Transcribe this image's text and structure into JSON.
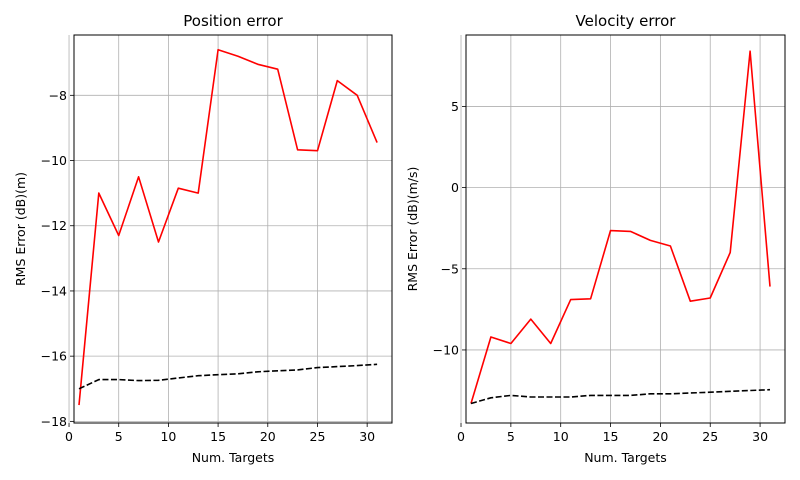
{
  "chart_data": [
    {
      "type": "line",
      "title": "Position error",
      "xlabel": "Num. Targets",
      "ylabel": "RMS Error (dB)(m)",
      "xlim": [
        0.5,
        32.5
      ],
      "ylim": [
        -18.05,
        -6.15
      ],
      "xticks": [
        0,
        5,
        10,
        15,
        20,
        25,
        30
      ],
      "yticks": [
        -18,
        -16,
        -14,
        -12,
        -10,
        -8
      ],
      "ytick_labels": [
        "−18",
        "−16",
        "−14",
        "−12",
        "−10",
        "−8"
      ],
      "grid": true,
      "x": [
        1,
        3,
        5,
        7,
        9,
        11,
        13,
        15,
        17,
        19,
        21,
        23,
        25,
        27,
        29,
        31
      ],
      "series": [
        {
          "color": "#ff0000",
          "style": "solid",
          "values": [
            -17.5,
            -11.0,
            -12.3,
            -10.5,
            -12.5,
            -10.85,
            -11.0,
            -6.6,
            -6.8,
            -7.05,
            -7.2,
            -9.67,
            -9.7,
            -7.55,
            -8.0,
            -9.45
          ]
        },
        {
          "color": "#000000",
          "style": "dashed",
          "values": [
            -17.0,
            -16.72,
            -16.72,
            -16.75,
            -16.74,
            -16.67,
            -16.6,
            -16.57,
            -16.54,
            -16.48,
            -16.45,
            -16.42,
            -16.35,
            -16.32,
            -16.29,
            -16.25
          ]
        }
      ]
    },
    {
      "type": "line",
      "title": "Velocity error",
      "xlabel": "Num. Targets",
      "ylabel": "RMS Error (dB)(m/s)",
      "xlim": [
        0.5,
        32.5
      ],
      "ylim": [
        -14.5,
        9.4
      ],
      "xticks": [
        0,
        5,
        10,
        15,
        20,
        25,
        30
      ],
      "yticks": [
        -10,
        -5,
        0,
        5
      ],
      "ytick_labels": [
        "−10",
        "−5",
        "0",
        "5"
      ],
      "grid": true,
      "x": [
        1,
        3,
        5,
        7,
        9,
        11,
        13,
        15,
        17,
        19,
        21,
        23,
        25,
        27,
        29,
        31
      ],
      "series": [
        {
          "color": "#ff0000",
          "style": "solid",
          "values": [
            -13.3,
            -9.2,
            -9.6,
            -8.1,
            -9.6,
            -6.9,
            -6.85,
            -2.65,
            -2.7,
            -3.25,
            -3.6,
            -7.0,
            -6.8,
            -4.0,
            8.4,
            -6.1
          ]
        },
        {
          "color": "#000000",
          "style": "dashed",
          "values": [
            -13.3,
            -12.95,
            -12.8,
            -12.9,
            -12.9,
            -12.9,
            -12.8,
            -12.8,
            -12.8,
            -12.7,
            -12.7,
            -12.65,
            -12.6,
            -12.55,
            -12.5,
            -12.45
          ]
        }
      ]
    }
  ]
}
